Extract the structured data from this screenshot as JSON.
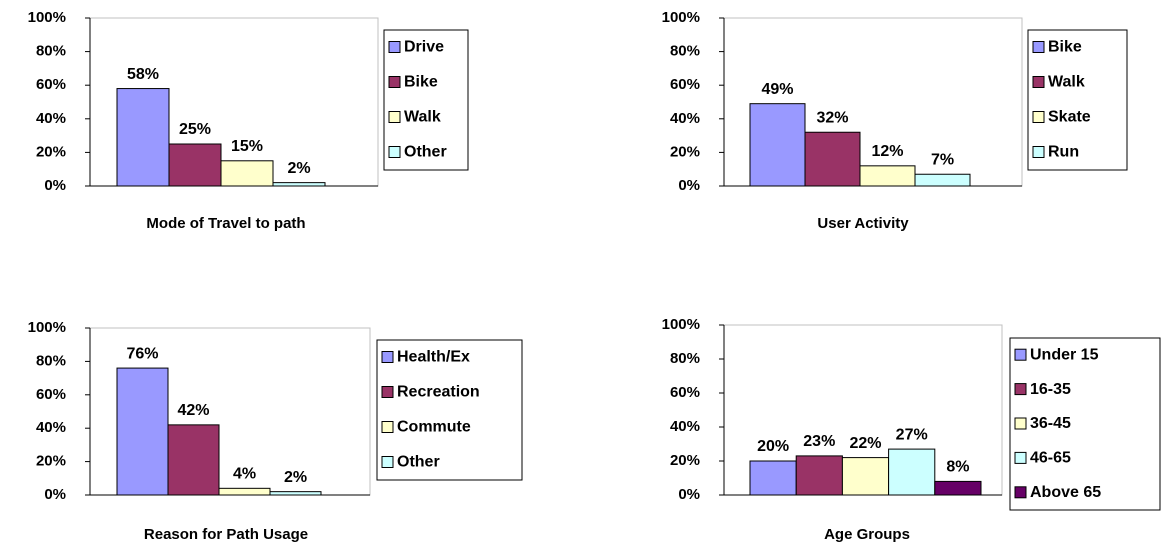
{
  "chart_data": [
    {
      "type": "bar",
      "title": "Mode of Travel to path",
      "categories": [
        "Drive",
        "Bike",
        "Walk",
        "Other"
      ],
      "values": [
        58,
        25,
        15,
        2
      ],
      "value_labels": [
        "58%",
        "25%",
        "15%",
        "2%"
      ],
      "colors": [
        "#9999ff",
        "#993366",
        "#ffffcc",
        "#ccffff"
      ],
      "ylim": [
        0,
        100
      ],
      "yticks": [
        {
          "value": 0,
          "label": "0%"
        },
        {
          "value": 20,
          "label": "20%"
        },
        {
          "value": 40,
          "label": "40%"
        },
        {
          "value": 60,
          "label": "60%"
        },
        {
          "value": 80,
          "label": "80%"
        },
        {
          "value": 100,
          "label": "100%"
        }
      ]
    },
    {
      "type": "bar",
      "title": "User Activity",
      "categories": [
        "Bike",
        "Walk",
        "Skate",
        "Run"
      ],
      "values": [
        49,
        32,
        12,
        7
      ],
      "value_labels": [
        "49%",
        "32%",
        "12%",
        "7%"
      ],
      "colors": [
        "#9999ff",
        "#993366",
        "#ffffcc",
        "#ccffff"
      ],
      "ylim": [
        0,
        100
      ],
      "yticks": [
        {
          "value": 0,
          "label": "0%"
        },
        {
          "value": 20,
          "label": "20%"
        },
        {
          "value": 40,
          "label": "40%"
        },
        {
          "value": 60,
          "label": "60%"
        },
        {
          "value": 80,
          "label": "80%"
        },
        {
          "value": 100,
          "label": "100%"
        }
      ]
    },
    {
      "type": "bar",
      "title": "Reason for Path Usage",
      "categories": [
        "Health/Ex",
        "Recreation",
        "Commute",
        "Other"
      ],
      "values": [
        76,
        42,
        4,
        2
      ],
      "value_labels": [
        "76%",
        "42%",
        "4%",
        "2%"
      ],
      "colors": [
        "#9999ff",
        "#993366",
        "#ffffcc",
        "#ccffff"
      ],
      "ylim": [
        0,
        100
      ],
      "yticks": [
        {
          "value": 0,
          "label": "0%"
        },
        {
          "value": 20,
          "label": "20%"
        },
        {
          "value": 40,
          "label": "40%"
        },
        {
          "value": 60,
          "label": "60%"
        },
        {
          "value": 80,
          "label": "80%"
        },
        {
          "value": 100,
          "label": "100%"
        }
      ]
    },
    {
      "type": "bar",
      "title": "Age Groups",
      "categories": [
        "Under 15",
        "16-35",
        "36-45",
        "46-65",
        "Above 65"
      ],
      "values": [
        20,
        23,
        22,
        27,
        8
      ],
      "value_labels": [
        "20%",
        "23%",
        "22%",
        "27%",
        "8%"
      ],
      "colors": [
        "#9999ff",
        "#993366",
        "#ffffcc",
        "#ccffff",
        "#660066"
      ],
      "ylim": [
        0,
        100
      ],
      "yticks": [
        {
          "value": 0,
          "label": "0%"
        },
        {
          "value": 20,
          "label": "20%"
        },
        {
          "value": 40,
          "label": "40%"
        },
        {
          "value": 60,
          "label": "60%"
        },
        {
          "value": 80,
          "label": "80%"
        },
        {
          "value": 100,
          "label": "100%"
        }
      ]
    }
  ]
}
